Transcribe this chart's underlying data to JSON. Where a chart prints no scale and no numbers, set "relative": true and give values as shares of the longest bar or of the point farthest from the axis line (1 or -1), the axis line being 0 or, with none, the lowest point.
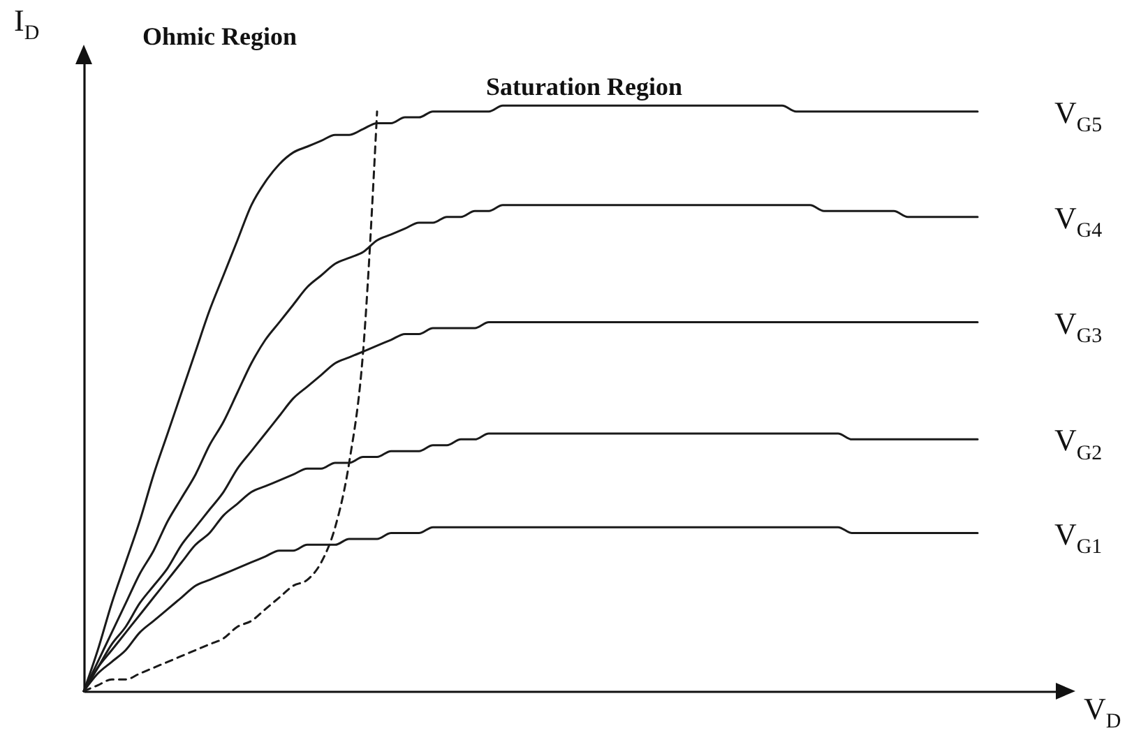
{
  "chart_data": {
    "type": "line",
    "relative": true,
    "tick_labels": false,
    "xlabel": "V$_{D}$",
    "ylabel": "I$_{D}$",
    "annotations": [
      "Ohmic Region",
      "Saturation Region"
    ],
    "categories": [
      null,
      null,
      null,
      null,
      null,
      null,
      null,
      null,
      null,
      null,
      null,
      null,
      null,
      null,
      null,
      null,
      null,
      null,
      null,
      null,
      null,
      null,
      null,
      null,
      null,
      null,
      null,
      null,
      null,
      null,
      null,
      null,
      null,
      null,
      null,
      null,
      null,
      null,
      null,
      null,
      null,
      null,
      null,
      null,
      null,
      null,
      null,
      null,
      null,
      null,
      null,
      null,
      null,
      null,
      null,
      null,
      null,
      null,
      null,
      null,
      null,
      null,
      null,
      null,
      null
    ],
    "series": [
      {
        "name": "V$_{G5}$",
        "color": "#1a1a1a",
        "values": [
          0,
          0.07,
          0.15,
          0.22,
          0.29,
          0.37,
          0.44,
          0.51,
          0.58,
          0.65,
          0.71,
          0.77,
          0.83,
          0.87,
          0.9,
          0.92,
          0.93,
          0.94,
          0.95,
          0.95,
          0.96,
          0.97,
          0.97,
          0.98,
          0.98,
          0.99,
          0.99,
          0.99,
          0.99,
          0.99,
          1,
          1,
          1,
          1,
          1,
          1,
          1,
          1,
          1,
          1,
          1,
          1,
          1,
          1,
          1,
          1,
          1,
          1,
          1,
          1,
          1,
          0.99,
          0.99,
          0.99,
          0.99,
          0.99,
          0.99,
          0.99,
          0.99,
          0.99,
          0.99,
          0.99,
          0.99,
          0.99,
          0.99
        ]
      },
      {
        "name": "V$_{G4}$",
        "color": "#1a1a1a",
        "values": [
          0,
          0.05,
          0.1,
          0.15,
          0.2,
          0.24,
          0.29,
          0.33,
          0.37,
          0.42,
          0.46,
          0.51,
          0.56,
          0.6,
          0.63,
          0.66,
          0.69,
          0.71,
          0.73,
          0.74,
          0.75,
          0.77,
          0.78,
          0.79,
          0.8,
          0.8,
          0.81,
          0.81,
          0.82,
          0.82,
          0.83,
          0.83,
          0.83,
          0.83,
          0.83,
          0.83,
          0.83,
          0.83,
          0.83,
          0.83,
          0.83,
          0.83,
          0.83,
          0.83,
          0.83,
          0.83,
          0.83,
          0.83,
          0.83,
          0.83,
          0.83,
          0.83,
          0.83,
          0.82,
          0.82,
          0.82,
          0.82,
          0.82,
          0.82,
          0.81,
          0.81,
          0.81,
          0.81,
          0.81,
          0.81
        ]
      },
      {
        "name": "V$_{G3}$",
        "color": "#1a1a1a",
        "values": [
          0,
          0.04,
          0.08,
          0.11,
          0.15,
          0.18,
          0.21,
          0.25,
          0.28,
          0.31,
          0.34,
          0.38,
          0.41,
          0.44,
          0.47,
          0.5,
          0.52,
          0.54,
          0.56,
          0.57,
          0.58,
          0.59,
          0.6,
          0.61,
          0.61,
          0.62,
          0.62,
          0.62,
          0.62,
          0.63,
          0.63,
          0.63,
          0.63,
          0.63,
          0.63,
          0.63,
          0.63,
          0.63,
          0.63,
          0.63,
          0.63,
          0.63,
          0.63,
          0.63,
          0.63,
          0.63,
          0.63,
          0.63,
          0.63,
          0.63,
          0.63,
          0.63,
          0.63,
          0.63,
          0.63,
          0.63,
          0.63,
          0.63,
          0.63,
          0.63,
          0.63,
          0.63,
          0.63,
          0.63,
          0.63
        ]
      },
      {
        "name": "V$_{G2}$",
        "color": "#1a1a1a",
        "values": [
          0,
          0.04,
          0.07,
          0.1,
          0.13,
          0.16,
          0.19,
          0.22,
          0.25,
          0.27,
          0.3,
          0.32,
          0.34,
          0.35,
          0.36,
          0.37,
          0.38,
          0.38,
          0.39,
          0.39,
          0.4,
          0.4,
          0.41,
          0.41,
          0.41,
          0.42,
          0.42,
          0.43,
          0.43,
          0.44,
          0.44,
          0.44,
          0.44,
          0.44,
          0.44,
          0.44,
          0.44,
          0.44,
          0.44,
          0.44,
          0.44,
          0.44,
          0.44,
          0.44,
          0.44,
          0.44,
          0.44,
          0.44,
          0.44,
          0.44,
          0.44,
          0.44,
          0.44,
          0.44,
          0.44,
          0.43,
          0.43,
          0.43,
          0.43,
          0.43,
          0.43,
          0.43,
          0.43,
          0.43,
          0.43
        ]
      },
      {
        "name": "V$_{G1}$",
        "color": "#1a1a1a",
        "values": [
          0,
          0.03,
          0.05,
          0.07,
          0.1,
          0.12,
          0.14,
          0.16,
          0.18,
          0.19,
          0.2,
          0.21,
          0.22,
          0.23,
          0.24,
          0.24,
          0.25,
          0.25,
          0.25,
          0.26,
          0.26,
          0.26,
          0.27,
          0.27,
          0.27,
          0.28,
          0.28,
          0.28,
          0.28,
          0.28,
          0.28,
          0.28,
          0.28,
          0.28,
          0.28,
          0.28,
          0.28,
          0.28,
          0.28,
          0.28,
          0.28,
          0.28,
          0.28,
          0.28,
          0.28,
          0.28,
          0.28,
          0.28,
          0.28,
          0.28,
          0.28,
          0.28,
          0.28,
          0.28,
          0.28,
          0.27,
          0.27,
          0.27,
          0.27,
          0.27,
          0.27,
          0.27,
          0.27,
          0.27,
          0.27
        ]
      },
      {
        "color": "#1a1a1a",
        "line_style": "dashed",
        "values": [
          0,
          0.01,
          0.02,
          0.02,
          0.03,
          0.04,
          0.05,
          0.06,
          0.07,
          0.08,
          0.09,
          0.11,
          0.12,
          0.14,
          0.16,
          0.18,
          0.19,
          0.22,
          0.28,
          0.39,
          0.58,
          0.99,
          null,
          null,
          null,
          null,
          null,
          null,
          null,
          null,
          null,
          null,
          null,
          null,
          null,
          null,
          null,
          null,
          null,
          null,
          null,
          null,
          null,
          null,
          null,
          null,
          null,
          null,
          null,
          null,
          null,
          null,
          null,
          null,
          null,
          null,
          null,
          null,
          null,
          null,
          null,
          null,
          null,
          null,
          null
        ]
      }
    ]
  }
}
